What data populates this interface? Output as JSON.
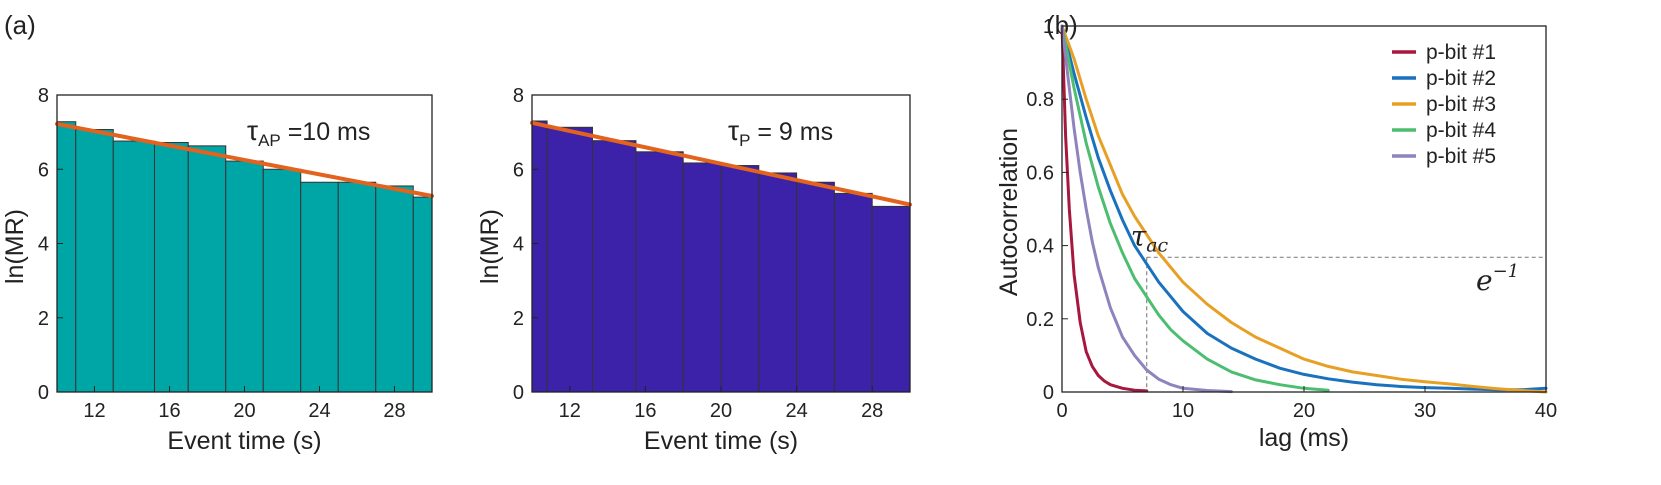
{
  "colors": {
    "panel_a_bars": "#00A6A6",
    "panel_b_bars": "#3B22A8",
    "fit_line": "#E2621E",
    "bar_edge": "#333333",
    "reference_lines": "#888888"
  },
  "panel_labels": {
    "a": "(a)",
    "b": "(b)"
  },
  "chart_data": [
    {
      "type": "bar",
      "subtype": "histogram-with-linear-fit",
      "xlabel": "Event time (s)",
      "ylabel": "ln(MR)",
      "xlim": [
        10,
        30
      ],
      "ylim": [
        0,
        8
      ],
      "xticks": [
        12,
        16,
        20,
        24,
        28
      ],
      "yticks": [
        0,
        2,
        4,
        6,
        8
      ],
      "annotation": {
        "symbol": "τ",
        "subscript": "AP",
        "text": " =10 ms"
      },
      "bins": [
        {
          "x0": 10.0,
          "x1": 11.0,
          "y": 7.28
        },
        {
          "x0": 11.0,
          "x1": 13.0,
          "y": 7.07
        },
        {
          "x0": 13.0,
          "x1": 15.2,
          "y": 6.76
        },
        {
          "x0": 15.2,
          "x1": 17.0,
          "y": 6.72
        },
        {
          "x0": 17.0,
          "x1": 19.0,
          "y": 6.63
        },
        {
          "x0": 19.0,
          "x1": 21.0,
          "y": 6.22
        },
        {
          "x0": 21.0,
          "x1": 23.0,
          "y": 6.0
        },
        {
          "x0": 23.0,
          "x1": 25.0,
          "y": 5.65
        },
        {
          "x0": 25.0,
          "x1": 27.0,
          "y": 5.65
        },
        {
          "x0": 27.0,
          "x1": 29.0,
          "y": 5.55
        },
        {
          "x0": 29.0,
          "x1": 30.0,
          "y": 5.25
        }
      ],
      "fit": {
        "x": [
          10,
          30
        ],
        "y": [
          7.22,
          5.28
        ]
      }
    },
    {
      "type": "bar",
      "subtype": "histogram-with-linear-fit",
      "xlabel": "Event time (s)",
      "ylabel": "ln(MR)",
      "xlim": [
        10,
        30
      ],
      "ylim": [
        0,
        8
      ],
      "xticks": [
        12,
        16,
        20,
        24,
        28
      ],
      "yticks": [
        0,
        2,
        4,
        6,
        8
      ],
      "annotation": {
        "symbol": "τ",
        "subscript": "P",
        "text": " = 9 ms"
      },
      "bins": [
        {
          "x0": 10.0,
          "x1": 10.8,
          "y": 7.3
        },
        {
          "x0": 10.8,
          "x1": 13.2,
          "y": 7.13
        },
        {
          "x0": 13.2,
          "x1": 15.5,
          "y": 6.77
        },
        {
          "x0": 15.5,
          "x1": 18.0,
          "y": 6.47
        },
        {
          "x0": 18.0,
          "x1": 20.0,
          "y": 6.17
        },
        {
          "x0": 20.0,
          "x1": 22.0,
          "y": 6.1
        },
        {
          "x0": 22.0,
          "x1": 24.0,
          "y": 5.9
        },
        {
          "x0": 24.0,
          "x1": 26.0,
          "y": 5.65
        },
        {
          "x0": 26.0,
          "x1": 28.0,
          "y": 5.35
        },
        {
          "x0": 28.0,
          "x1": 30.0,
          "y": 5.0
        }
      ],
      "fit": {
        "x": [
          10,
          30
        ],
        "y": [
          7.25,
          5.05
        ]
      }
    },
    {
      "type": "line",
      "xlabel": "lag (ms)",
      "ylabel": "Autocorrelation",
      "xlim": [
        0,
        40
      ],
      "ylim": [
        0,
        1
      ],
      "xticks": [
        0,
        10,
        20,
        30,
        40
      ],
      "yticks": [
        0,
        0.2,
        0.4,
        0.6,
        0.8,
        1
      ],
      "ytick_labels": [
        "0",
        "0.2",
        "0.4",
        "0.6",
        "0.8",
        "1"
      ],
      "legend": "top-right",
      "series": [
        {
          "name": "p-bit #1",
          "color": "#A8173D",
          "x": [
            0,
            0.3,
            0.6,
            1,
            1.5,
            2,
            2.5,
            3,
            3.5,
            4,
            5,
            6,
            7
          ],
          "y": [
            1,
            0.7,
            0.5,
            0.32,
            0.19,
            0.11,
            0.07,
            0.045,
            0.03,
            0.02,
            0.01,
            0.005,
            0.003
          ]
        },
        {
          "name": "p-bit #2",
          "color": "#1A71BE",
          "x": [
            0,
            1,
            2,
            3,
            4,
            5,
            6,
            7,
            8,
            9,
            10,
            12,
            14,
            16,
            18,
            20,
            22,
            24,
            26,
            28,
            30,
            32,
            34,
            36,
            38,
            40
          ],
          "y": [
            1,
            0.87,
            0.75,
            0.64,
            0.55,
            0.47,
            0.4,
            0.35,
            0.3,
            0.26,
            0.22,
            0.16,
            0.12,
            0.09,
            0.065,
            0.048,
            0.036,
            0.027,
            0.02,
            0.015,
            0.012,
            0.01,
            0.008,
            0.006,
            0.006,
            0.01
          ]
        },
        {
          "name": "p-bit #3",
          "color": "#E8A024",
          "x": [
            0,
            1,
            2,
            3,
            4,
            5,
            6,
            7,
            8,
            10,
            12,
            14,
            16,
            18,
            20,
            22,
            24,
            26,
            28,
            30,
            32,
            34,
            36,
            38,
            40
          ],
          "y": [
            1,
            0.91,
            0.8,
            0.7,
            0.62,
            0.54,
            0.48,
            0.43,
            0.38,
            0.3,
            0.24,
            0.19,
            0.15,
            0.12,
            0.09,
            0.07,
            0.055,
            0.045,
            0.035,
            0.028,
            0.022,
            0.015,
            0.009,
            0.004,
            0.0
          ]
        },
        {
          "name": "p-bit #4",
          "color": "#4DBD70",
          "x": [
            0,
            1,
            2,
            3,
            4,
            5,
            6,
            7,
            8,
            9,
            10,
            12,
            14,
            16,
            18,
            20,
            22
          ],
          "y": [
            1,
            0.83,
            0.68,
            0.56,
            0.46,
            0.38,
            0.31,
            0.26,
            0.21,
            0.17,
            0.14,
            0.09,
            0.055,
            0.033,
            0.02,
            0.01,
            0.005
          ]
        },
        {
          "name": "p-bit #5",
          "color": "#8E83BD",
          "x": [
            0,
            0.5,
            1,
            1.5,
            2,
            2.5,
            3,
            4,
            5,
            6,
            7,
            8,
            9,
            10,
            12,
            14
          ],
          "y": [
            1,
            0.86,
            0.72,
            0.6,
            0.5,
            0.41,
            0.34,
            0.23,
            0.15,
            0.1,
            0.06,
            0.035,
            0.02,
            0.01,
            0.004,
            0.001
          ]
        }
      ],
      "annotations": {
        "tau_label": "τ",
        "tau_sub": "ac",
        "e_inverse_base": "e",
        "e_inverse_exp": "−1",
        "threshold_y": 0.368,
        "tau_x": 7
      }
    }
  ]
}
